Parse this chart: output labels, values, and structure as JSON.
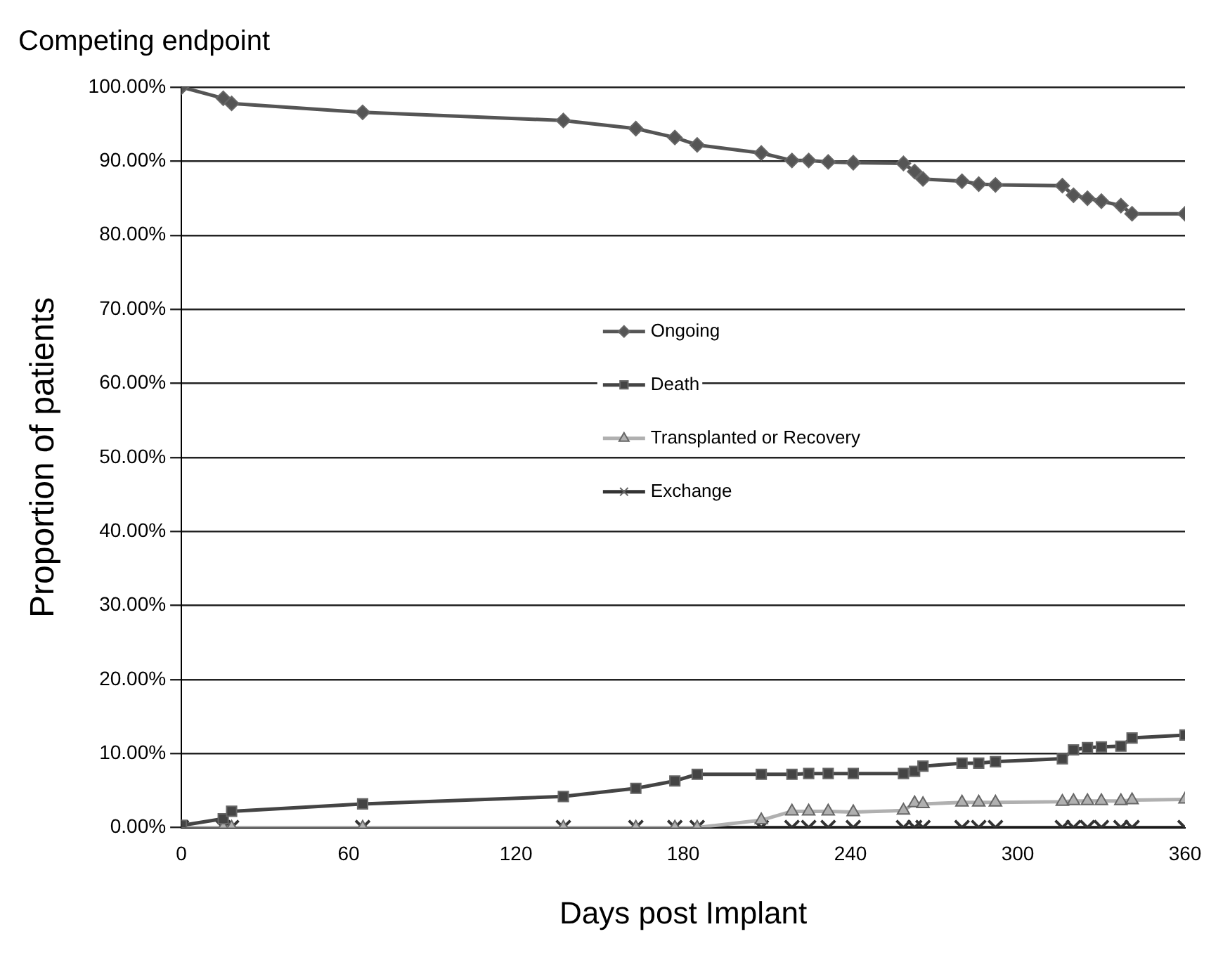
{
  "chart_data": {
    "type": "line",
    "title": "Competing endpoint",
    "xlabel": "Days post Implant",
    "ylabel": "Proportion of patients",
    "x": [
      0,
      15,
      18,
      65,
      137,
      163,
      177,
      185,
      208,
      219,
      225,
      232,
      241,
      259,
      263,
      266,
      280,
      286,
      292,
      316,
      320,
      325,
      330,
      337,
      341,
      360
    ],
    "series": [
      {
        "name": "Ongoing",
        "color": "#555555",
        "marker": "diamond",
        "values": [
          100,
          98.5,
          97.8,
          96.6,
          95.5,
          94.4,
          93.2,
          92.2,
          91.1,
          90.1,
          90.1,
          89.9,
          89.8,
          89.7,
          88.6,
          87.6,
          87.3,
          86.9,
          86.8,
          86.7,
          85.4,
          85.0,
          84.6,
          84.0,
          82.9,
          82.9
        ]
      },
      {
        "name": "Death",
        "color": "#444444",
        "marker": "square",
        "values": [
          0.3,
          1.2,
          2.2,
          3.2,
          4.2,
          5.3,
          6.3,
          7.2,
          7.2,
          7.2,
          7.3,
          7.3,
          7.3,
          7.3,
          7.6,
          8.3,
          8.7,
          8.7,
          8.9,
          9.3,
          10.5,
          10.8,
          10.9,
          11.0,
          12.1,
          12.5
        ]
      },
      {
        "name": "Transplanted or Recovery",
        "color": "#b0b0b0",
        "marker": "triangle",
        "values": [
          0,
          0,
          0,
          0,
          0,
          0,
          0,
          0,
          1.0,
          2.2,
          2.2,
          2.2,
          2.1,
          2.3,
          3.3,
          3.2,
          3.4,
          3.4,
          3.4,
          3.5,
          3.6,
          3.6,
          3.6,
          3.6,
          3.7,
          3.8
        ]
      },
      {
        "name": "Exchange",
        "color": "#333333",
        "marker": "cross",
        "values": [
          0,
          0,
          0,
          0,
          0,
          0,
          0,
          0,
          0,
          0,
          0,
          0,
          0,
          0,
          0,
          0,
          0,
          0,
          0,
          0,
          0,
          0,
          0,
          0,
          0,
          0
        ]
      }
    ],
    "xlim": [
      0,
      360
    ],
    "xticks": [
      0,
      60,
      120,
      180,
      240,
      300,
      360
    ],
    "ylim": [
      0,
      100
    ],
    "yticks": [
      {
        "value": 0,
        "label": "0.00%"
      },
      {
        "value": 10,
        "label": "10.00%"
      },
      {
        "value": 20,
        "label": "20.00%"
      },
      {
        "value": 30,
        "label": "30.00%"
      },
      {
        "value": 40,
        "label": "40.00%"
      },
      {
        "value": 50,
        "label": "50.00%"
      },
      {
        "value": 60,
        "label": "60.00%"
      },
      {
        "value": 70,
        "label": "70.00%"
      },
      {
        "value": 80,
        "label": "80.00%"
      },
      {
        "value": 90,
        "label": "90.00%"
      },
      {
        "value": 100,
        "label": "100.00%"
      }
    ],
    "grid": "y",
    "legend": "center",
    "line_style": "solid"
  }
}
